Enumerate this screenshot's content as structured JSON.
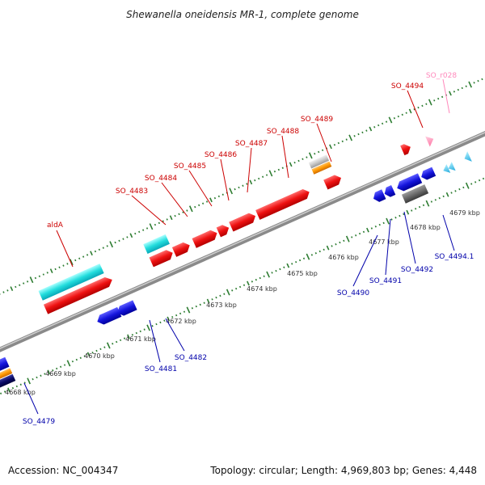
{
  "title": "Shewanella oneidensis MR-1, complete genome",
  "footer": {
    "accession": "Accession: NC_004347",
    "topology": "Topology: circular; Length: 4,969,803 bp; Genes: 4,448"
  },
  "colors": {
    "forward_label": "#cc0000",
    "reverse_label": "#0000aa",
    "rna_label": "#ff88bb",
    "ticks": "#2e7d32",
    "backbone": "#8a8a8a"
  },
  "kbp_labels": [
    "4668 kbp",
    "4669 kbp",
    "4670 kbp",
    "4671 kbp",
    "4672 kbp",
    "4673 kbp",
    "4674 kbp",
    "4675 kbp",
    "4676 kbp",
    "4677 kbp",
    "4678 kbp",
    "4679 kbp"
  ],
  "forward_labels": [
    "aldA",
    "SO_4483",
    "SO_4484",
    "SO_4485",
    "SO_4486",
    "SO_4487",
    "SO_4488",
    "SO_4489",
    "SO_4494"
  ],
  "rna_labels": [
    "SO_r028"
  ],
  "reverse_labels": [
    "SO_4479",
    "SO_4481",
    "SO_4482",
    "SO_4490",
    "SO_4491",
    "SO_4492",
    "SO_4494.1"
  ]
}
